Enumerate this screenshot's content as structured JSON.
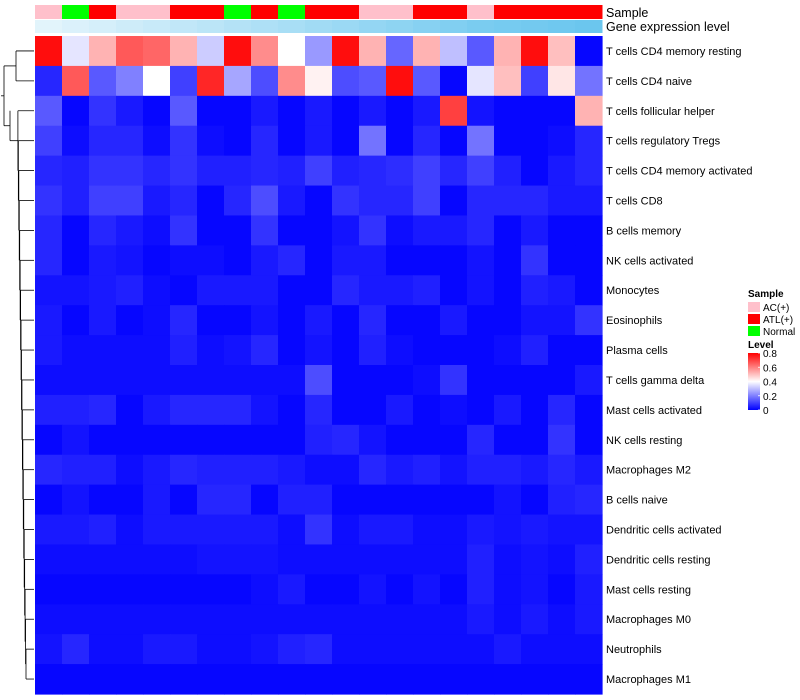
{
  "chart_data": {
    "type": "heatmap",
    "annotation_labels": [
      "Sample",
      "Gene expression level"
    ],
    "samples": [
      "AC(+)",
      "Normal",
      "ATL(+)",
      "AC(+)",
      "AC(+)",
      "ATL(+)",
      "ATL(+)",
      "Normal",
      "ATL(+)",
      "Normal",
      "ATL(+)",
      "ATL(+)",
      "AC(+)",
      "AC(+)",
      "ATL(+)",
      "ATL(+)",
      "AC(+)",
      "ATL(+)",
      "ATL(+)",
      "ATL(+)",
      "ATL(+)"
    ],
    "gene_expression_level": [
      0.05,
      0.1,
      0.15,
      0.2,
      0.25,
      0.3,
      0.35,
      0.4,
      0.45,
      0.5,
      0.55,
      0.6,
      0.65,
      0.7,
      0.75,
      0.8,
      0.85,
      0.88,
      0.91,
      0.94,
      0.97
    ],
    "rows": [
      "T cells CD4 memory resting",
      "T cells CD4 naive",
      "T cells follicular helper",
      "T cells regulatory  Tregs",
      "T cells CD4 memory activated",
      "T cells CD8",
      "B cells memory",
      "NK cells activated",
      "Monocytes",
      "Eosinophils",
      "Plasma cells",
      "T cells gamma delta",
      "Mast cells activated",
      "NK cells resting",
      "Macrophages M2",
      "B cells naive",
      "Dendritic cells activated",
      "Dendritic cells resting",
      "Mast cells resting",
      "Macrophages M0",
      "Neutrophils",
      "Macrophages M1"
    ],
    "values": [
      [
        0.78,
        0.36,
        0.52,
        0.66,
        0.64,
        0.52,
        0.32,
        0.78,
        0.58,
        0.4,
        0.24,
        0.78,
        0.52,
        0.16,
        0.52,
        0.3,
        0.14,
        0.52,
        0.78,
        0.5,
        0.01
      ],
      [
        0.06,
        0.66,
        0.14,
        0.2,
        0.4,
        0.1,
        0.74,
        0.26,
        0.12,
        0.58,
        0.42,
        0.12,
        0.14,
        0.78,
        0.14,
        0.01,
        0.36,
        0.5,
        0.1,
        0.44,
        0.18
      ],
      [
        0.14,
        0.01,
        0.08,
        0.04,
        0.01,
        0.14,
        0.01,
        0.01,
        0.04,
        0.01,
        0.04,
        0.01,
        0.04,
        0.01,
        0.04,
        0.7,
        0.03,
        0.01,
        0.01,
        0.01,
        0.52
      ],
      [
        0.1,
        0.02,
        0.06,
        0.06,
        0.02,
        0.08,
        0.02,
        0.01,
        0.06,
        0.01,
        0.04,
        0.01,
        0.18,
        0.01,
        0.06,
        0.01,
        0.18,
        0.01,
        0.01,
        0.02,
        0.06
      ],
      [
        0.06,
        0.05,
        0.08,
        0.08,
        0.06,
        0.08,
        0.05,
        0.05,
        0.06,
        0.05,
        0.1,
        0.05,
        0.06,
        0.07,
        0.1,
        0.06,
        0.1,
        0.05,
        0.01,
        0.04,
        0.06
      ],
      [
        0.08,
        0.05,
        0.1,
        0.1,
        0.04,
        0.06,
        0.01,
        0.06,
        0.12,
        0.04,
        0.01,
        0.08,
        0.06,
        0.06,
        0.1,
        0.01,
        0.06,
        0.06,
        0.06,
        0.04,
        0.04
      ],
      [
        0.06,
        0.01,
        0.06,
        0.04,
        0.02,
        0.08,
        0.01,
        0.01,
        0.08,
        0.01,
        0.01,
        0.03,
        0.08,
        0.02,
        0.04,
        0.04,
        0.06,
        0.01,
        0.04,
        0.01,
        0.01
      ],
      [
        0.06,
        0.01,
        0.04,
        0.03,
        0.01,
        0.02,
        0.02,
        0.01,
        0.04,
        0.06,
        0.01,
        0.04,
        0.04,
        0.01,
        0.01,
        0.01,
        0.03,
        0.01,
        0.08,
        0.01,
        0.01
      ],
      [
        0.03,
        0.03,
        0.04,
        0.05,
        0.02,
        0.01,
        0.04,
        0.04,
        0.04,
        0.01,
        0.01,
        0.06,
        0.04,
        0.04,
        0.05,
        0.01,
        0.03,
        0.01,
        0.05,
        0.04,
        0.01
      ],
      [
        0.04,
        0.01,
        0.04,
        0.01,
        0.02,
        0.06,
        0.01,
        0.01,
        0.03,
        0.01,
        0.04,
        0.01,
        0.06,
        0.01,
        0.01,
        0.04,
        0.01,
        0.01,
        0.03,
        0.03,
        0.08
      ],
      [
        0.04,
        0.02,
        0.02,
        0.02,
        0.02,
        0.05,
        0.02,
        0.03,
        0.06,
        0.01,
        0.03,
        0.01,
        0.05,
        0.02,
        0.01,
        0.01,
        0.01,
        0.02,
        0.05,
        0.01,
        0.01
      ],
      [
        0.02,
        0.02,
        0.02,
        0.02,
        0.02,
        0.02,
        0.02,
        0.02,
        0.02,
        0.02,
        0.12,
        0.01,
        0.01,
        0.01,
        0.02,
        0.08,
        0.01,
        0.01,
        0.01,
        0.01,
        0.04
      ],
      [
        0.05,
        0.05,
        0.06,
        0.01,
        0.04,
        0.06,
        0.06,
        0.06,
        0.03,
        0.01,
        0.06,
        0.01,
        0.01,
        0.04,
        0.01,
        0.02,
        0.01,
        0.04,
        0.01,
        0.06,
        0.01
      ],
      [
        0.01,
        0.03,
        0.01,
        0.01,
        0.01,
        0.01,
        0.01,
        0.01,
        0.01,
        0.01,
        0.05,
        0.06,
        0.03,
        0.01,
        0.01,
        0.01,
        0.06,
        0.01,
        0.01,
        0.08,
        0.01
      ],
      [
        0.06,
        0.05,
        0.05,
        0.02,
        0.04,
        0.06,
        0.05,
        0.05,
        0.05,
        0.04,
        0.02,
        0.02,
        0.06,
        0.04,
        0.05,
        0.03,
        0.05,
        0.05,
        0.04,
        0.06,
        0.04
      ],
      [
        0.01,
        0.03,
        0.01,
        0.01,
        0.04,
        0.01,
        0.06,
        0.06,
        0.01,
        0.05,
        0.05,
        0.01,
        0.01,
        0.01,
        0.01,
        0.01,
        0.01,
        0.03,
        0.01,
        0.05,
        0.06
      ],
      [
        0.04,
        0.04,
        0.05,
        0.02,
        0.04,
        0.04,
        0.04,
        0.04,
        0.04,
        0.02,
        0.08,
        0.02,
        0.04,
        0.04,
        0.02,
        0.02,
        0.04,
        0.03,
        0.04,
        0.03,
        0.03
      ],
      [
        0.02,
        0.02,
        0.02,
        0.02,
        0.02,
        0.02,
        0.03,
        0.03,
        0.03,
        0.02,
        0.02,
        0.02,
        0.02,
        0.02,
        0.02,
        0.02,
        0.05,
        0.02,
        0.03,
        0.02,
        0.05
      ],
      [
        0.01,
        0.01,
        0.01,
        0.01,
        0.01,
        0.01,
        0.01,
        0.01,
        0.02,
        0.04,
        0.01,
        0.01,
        0.03,
        0.01,
        0.03,
        0.01,
        0.05,
        0.02,
        0.03,
        0.01,
        0.04
      ],
      [
        0.02,
        0.02,
        0.02,
        0.02,
        0.02,
        0.02,
        0.02,
        0.02,
        0.02,
        0.02,
        0.02,
        0.02,
        0.02,
        0.02,
        0.02,
        0.02,
        0.04,
        0.02,
        0.04,
        0.02,
        0.04
      ],
      [
        0.03,
        0.06,
        0.02,
        0.02,
        0.04,
        0.04,
        0.02,
        0.02,
        0.03,
        0.05,
        0.06,
        0.02,
        0.02,
        0.02,
        0.02,
        0.02,
        0.02,
        0.04,
        0.02,
        0.02,
        0.02
      ],
      [
        0.01,
        0.01,
        0.01,
        0.01,
        0.01,
        0.01,
        0.01,
        0.01,
        0.01,
        0.01,
        0.01,
        0.01,
        0.01,
        0.01,
        0.01,
        0.01,
        0.01,
        0.01,
        0.01,
        0.01,
        0.01
      ]
    ],
    "dendrogram_merges": [
      [
        1,
        2,
        0.1
      ],
      [
        4,
        5,
        0.12
      ],
      [
        0,
        1,
        0.95
      ],
      [
        3,
        4,
        0.25
      ]
    ],
    "legend": {
      "sample_title": "Sample",
      "sample_entries": [
        {
          "label": "AC(+)",
          "color": "#ffc0cb"
        },
        {
          "label": "ATL(+)",
          "color": "#ff0000"
        },
        {
          "label": "Normal",
          "color": "#00ff00"
        }
      ],
      "level_title": "Level",
      "level_ticks": [
        "0.8",
        "0.6",
        "0.4",
        "0.2",
        "0"
      ],
      "level_tick_values": [
        0.8,
        0.6,
        0.4,
        0.2,
        0
      ],
      "level_range": [
        0,
        0.8
      ]
    },
    "color_scale": {
      "low": "#0000ff",
      "mid": "#ffffff",
      "high": "#ff0000",
      "mid_value": 0.4
    },
    "expression_level_colors": {
      "low": "#e8f6fc",
      "high": "#67c5ee"
    }
  }
}
